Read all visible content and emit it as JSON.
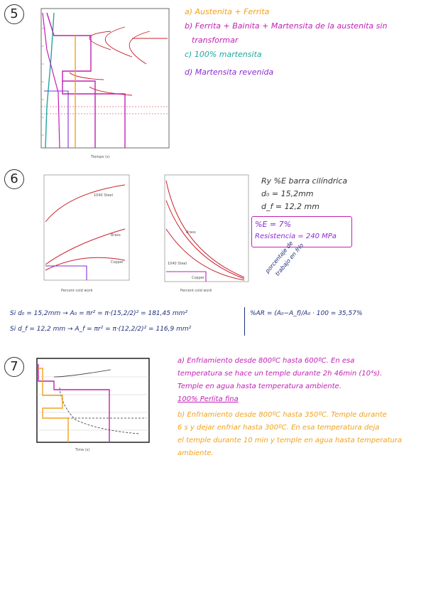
{
  "problem_5": {
    "number": "5",
    "answers": {
      "a": "a) Austenita + Ferrita",
      "b1": "b) Ferrita + Bainita + Martensita de la austenita sin",
      "b2": "transformar",
      "c": "c) 100% martensita",
      "d": "d) Martensita revenida"
    }
  },
  "problem_6": {
    "number": "6",
    "notes": {
      "title": "Ry %E barra cilíndrica",
      "d0": "d₀ = 15,2mm",
      "df": "d_f = 12,2 mm"
    },
    "box": {
      "line1": "%E = 7%",
      "line2": "Resistencia = 240 MPa"
    },
    "annotation1": "porcentaje de",
    "annotation2": "trabajo en frío",
    "calc_row1": "Si d₀ = 15,2mm → A₀ = πr² = π·(15,2/2)² = 181,45 mm²",
    "calc_row2": "Si d_f = 12,2 mm → A_f = πr² = π·(12,2/2)² = 116,9 mm²",
    "ar_formula": "%AR = (A₀−A_f)/A₀ · 100 = 35,57%"
  },
  "problem_7": {
    "number": "7",
    "answer_a1": "a) Enfriamiento desde 800ºC hasta 600ºC. En esa",
    "answer_a2": "temperatura se hace un temple durante 2h 46min (10⁴s).",
    "answer_a3": "Temple en agua hasta temperatura ambiente.",
    "answer_a4": "100% Perlita fina",
    "answer_b1": "b) Enfriamiento desde 800ºC hasta 350ºC. Temple durante",
    "answer_b2": "6 s y dejar enfriar hasta 300ºC. En esa temperatura deja",
    "answer_b3": "el temple durante 10 min y temple en agua hasta temperatura",
    "answer_b4": "ambiente."
  },
  "colors": {
    "magenta": "#c21fb4",
    "blue": "#1e2d7a",
    "orange": "#f2a21b",
    "teal": "#1fa6a0",
    "red_curve": "#c8202a"
  }
}
